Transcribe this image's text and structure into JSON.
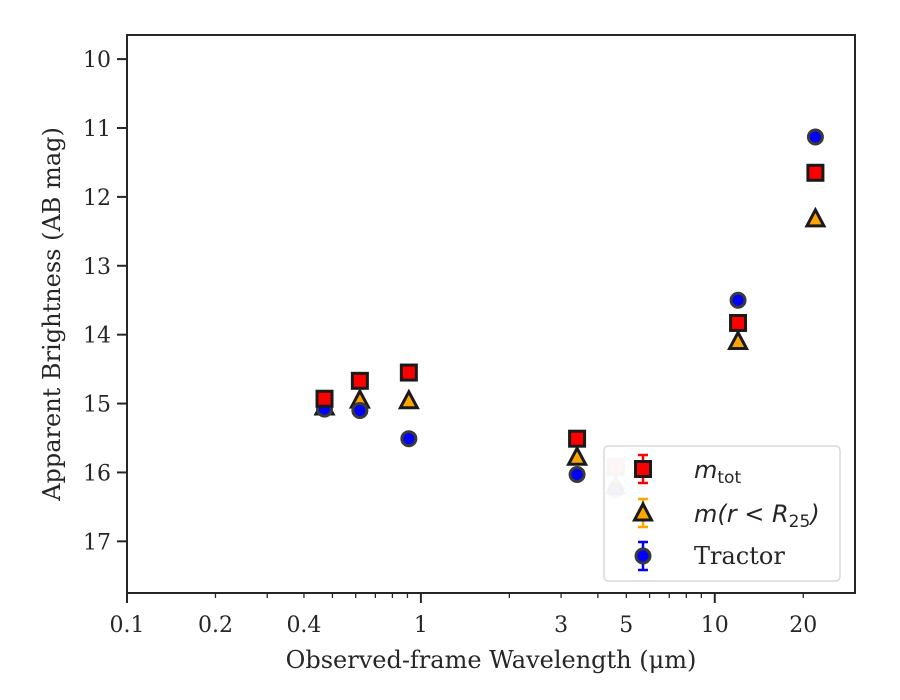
{
  "chart_data": {
    "type": "scatter",
    "xlabel": "Observed-frame Wavelength (μm)",
    "ylabel": "Apparent Brightness (AB mag)",
    "xscale": "log",
    "xlim": [
      0.1,
      30
    ],
    "ylim": [
      17.75,
      9.65
    ],
    "y_inverted": true,
    "x_ticks": [
      0.1,
      0.2,
      0.4,
      1,
      3,
      5,
      10,
      20
    ],
    "x_tick_labels": [
      "0.1",
      "0.2",
      "0.4",
      "1",
      "3",
      "5",
      "10",
      "20"
    ],
    "y_ticks": [
      10,
      11,
      12,
      13,
      14,
      15,
      16,
      17
    ],
    "y_tick_labels": [
      "10",
      "11",
      "12",
      "13",
      "14",
      "15",
      "16",
      "17"
    ],
    "grid": false,
    "legend_position": "lower-right",
    "series": [
      {
        "name": "m_tot",
        "legend_main": "m",
        "legend_sub": "tot",
        "marker": "square",
        "color": "#ff0000",
        "errcolor": "#ff0000",
        "x": [
          0.47,
          0.62,
          0.91,
          3.4,
          4.6,
          12,
          22
        ],
        "y": [
          14.93,
          14.67,
          14.55,
          15.51,
          15.92,
          13.83,
          11.65
        ],
        "alpha": [
          1,
          1,
          1,
          1,
          0.25,
          1,
          1
        ]
      },
      {
        "name": "m(r<R_25)",
        "legend_main": "m",
        "legend_rest": "(r < R",
        "legend_sub": "25",
        "legend_close": ")",
        "marker": "triangle",
        "color": "#ffa500",
        "errcolor": "#ffa500",
        "x": [
          0.47,
          0.62,
          0.91,
          3.4,
          4.6,
          12,
          22
        ],
        "y": [
          15.05,
          14.95,
          14.96,
          15.78,
          16.2,
          14.1,
          12.32
        ],
        "alpha": [
          1,
          1,
          1,
          1,
          0.25,
          1,
          1
        ]
      },
      {
        "name": "Tractor",
        "marker": "circle",
        "color": "#0000ff",
        "errcolor": "#0000ff",
        "x": [
          0.47,
          0.62,
          0.91,
          3.4,
          4.6,
          12,
          22
        ],
        "y": [
          15.08,
          15.1,
          15.51,
          16.03,
          16.26,
          13.5,
          11.13
        ],
        "alpha": [
          1,
          1,
          1,
          1,
          0.25,
          1,
          1
        ]
      }
    ]
  }
}
